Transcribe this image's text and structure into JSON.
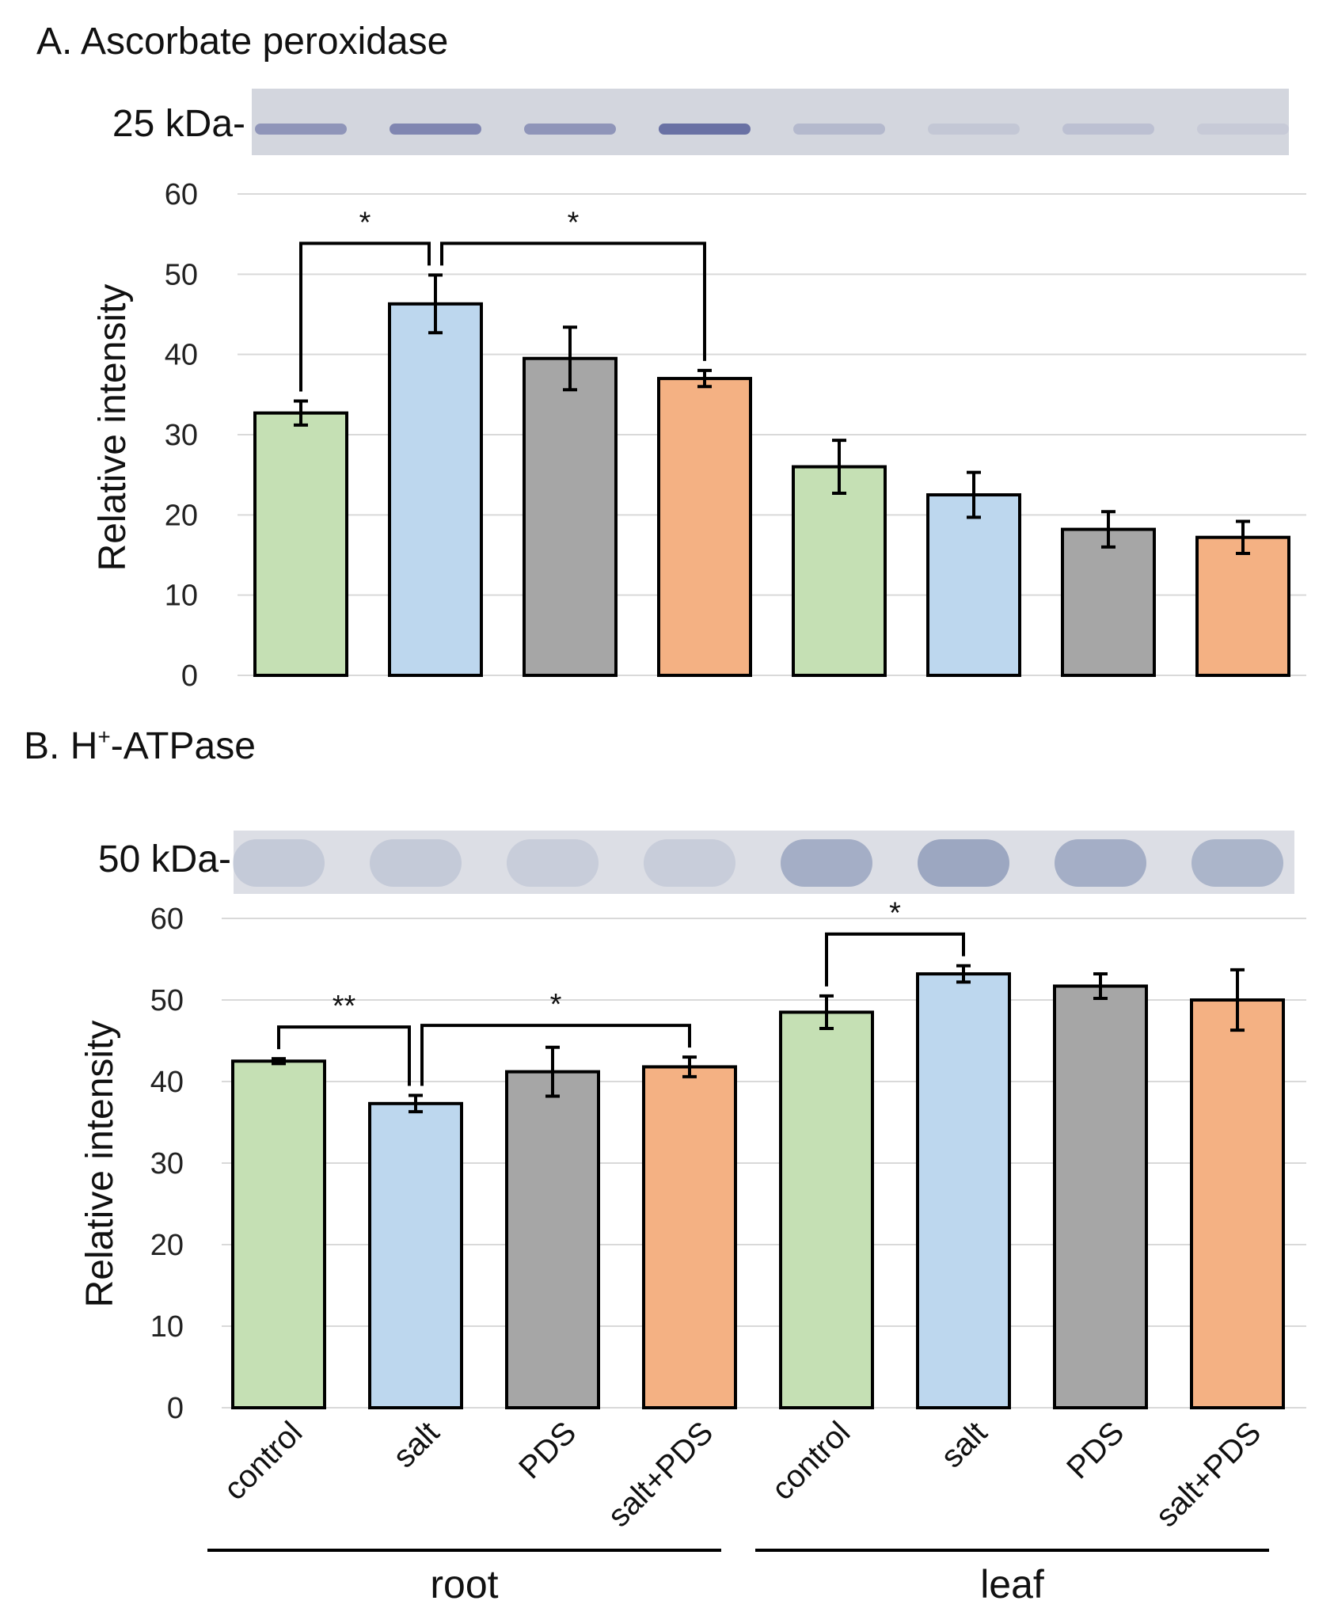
{
  "chart_data": [
    {
      "type": "bar",
      "title": "A. Ascorbate peroxidase",
      "blot_label": "25 kDa-",
      "ylabel": "Relative intensity",
      "xlabel": "",
      "ylim": [
        0,
        60
      ],
      "yticks": [
        0,
        10,
        20,
        30,
        40,
        50,
        60
      ],
      "categories": [
        "control",
        "salt",
        "PDS",
        "salt+PDS",
        "control",
        "salt",
        "PDS",
        "salt+PDS"
      ],
      "groups": [
        {
          "name": "root",
          "start": 0,
          "end": 3
        },
        {
          "name": "leaf",
          "start": 4,
          "end": 7
        }
      ],
      "values": [
        32.7,
        46.3,
        39.5,
        37.0,
        26.0,
        22.5,
        18.2,
        17.2
      ],
      "errors": [
        1.5,
        3.6,
        3.9,
        1.0,
        3.3,
        2.8,
        2.2,
        2.0
      ],
      "colors": [
        "#c5e0b4",
        "#bdd7ee",
        "#a6a6a6",
        "#f4b183",
        "#c5e0b4",
        "#bdd7ee",
        "#a6a6a6",
        "#f4b183"
      ],
      "band_intensity": [
        0.45,
        0.55,
        0.45,
        0.7,
        0.2,
        0.1,
        0.15,
        0.08
      ],
      "significance": [
        {
          "from": 0,
          "to": 1,
          "label": "*"
        },
        {
          "from": 1,
          "to": 3,
          "label": "*"
        }
      ],
      "grid": true
    },
    {
      "type": "bar",
      "title": "B. H",
      "title_sup": "+",
      "title_rest": "-ATPase",
      "blot_label": "50 kDa-",
      "ylabel": "Relative intensity",
      "xlabel": "",
      "ylim": [
        0,
        60
      ],
      "yticks": [
        0,
        10,
        20,
        30,
        40,
        50,
        60
      ],
      "categories": [
        "control",
        "salt",
        "PDS",
        "salt+PDS",
        "control",
        "salt",
        "PDS",
        "salt+PDS"
      ],
      "groups": [
        {
          "name": "root",
          "start": 0,
          "end": 3
        },
        {
          "name": "leaf",
          "start": 4,
          "end": 7
        }
      ],
      "values": [
        42.5,
        37.3,
        41.2,
        41.8,
        48.5,
        53.2,
        51.7,
        50.0
      ],
      "errors": [
        0.3,
        1.0,
        3.0,
        1.2,
        2.0,
        1.0,
        1.5,
        3.7
      ],
      "colors": [
        "#c5e0b4",
        "#bdd7ee",
        "#a6a6a6",
        "#f4b183",
        "#c5e0b4",
        "#bdd7ee",
        "#a6a6a6",
        "#f4b183"
      ],
      "band_intensity": [
        0.15,
        0.15,
        0.12,
        0.12,
        0.35,
        0.4,
        0.35,
        0.3
      ],
      "significance": [
        {
          "from": 0,
          "to": 1,
          "label": "**"
        },
        {
          "from": 1,
          "to": 3,
          "label": "*"
        },
        {
          "from": 4,
          "to": 5,
          "label": "*"
        }
      ],
      "grid": true
    }
  ]
}
